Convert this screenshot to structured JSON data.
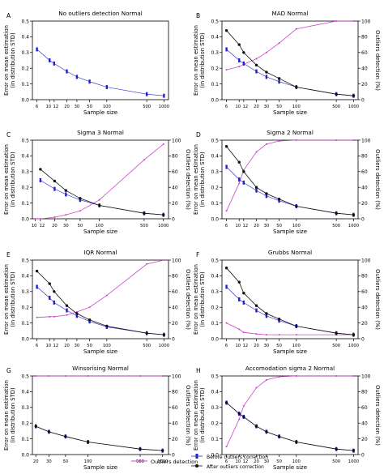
{
  "figure_legend": {
    "outliers_detection": "Outliers detection",
    "before_correction": "Before outliers correction",
    "after_correction": "After outliers correction"
  },
  "colors": {
    "detection": "#cc44cc",
    "before": "#2222cc",
    "after": "#111111"
  },
  "chart_data": [
    {
      "panel": "A",
      "type": "line",
      "title": "No outliers detection Normal",
      "xlabel": "Sample size",
      "ylabel": "Error on  mean estimation\n(in distribution STD)",
      "y2label": "",
      "x_scale": "log",
      "xticks": [
        "6",
        "10",
        "12",
        "20",
        "30",
        "50",
        "100",
        "500",
        "1000"
      ],
      "xlim": [
        5,
        1200
      ],
      "ylim": [
        0,
        0.5
      ],
      "yticks": [
        "0.0",
        "0.1",
        "0.2",
        "0.3",
        "0.4",
        "0.5"
      ],
      "series": [
        {
          "role": "before",
          "x": [
            6,
            10,
            12,
            20,
            30,
            50,
            100,
            500,
            1000
          ],
          "y": [
            0.32,
            0.25,
            0.23,
            0.18,
            0.145,
            0.115,
            0.08,
            0.035,
            0.025
          ]
        }
      ]
    },
    {
      "panel": "B",
      "type": "line",
      "title": "MAD Normal",
      "xlabel": "Sample size",
      "ylabel": "Error on  mean estimation\n(in distribution STD)",
      "y2label": "Outliers detection (%)",
      "x_scale": "log",
      "xticks": [
        "6",
        "10",
        "12",
        "20",
        "30",
        "50",
        "100",
        "500",
        "1000"
      ],
      "xlim": [
        5,
        1200
      ],
      "ylim": [
        0,
        0.5
      ],
      "yticks": [
        "0.0",
        "0.1",
        "0.2",
        "0.3",
        "0.4",
        "0.5"
      ],
      "y2lim": [
        0,
        100
      ],
      "y2ticks": [
        "0",
        "20",
        "40",
        "60",
        "80",
        "100"
      ],
      "series": [
        {
          "role": "before",
          "x": [
            6,
            10,
            12,
            20,
            30,
            50,
            100,
            500,
            1000
          ],
          "y": [
            0.32,
            0.25,
            0.23,
            0.18,
            0.145,
            0.115,
            0.08,
            0.035,
            0.025
          ]
        },
        {
          "role": "after",
          "x": [
            6,
            10,
            12,
            20,
            30,
            50,
            100,
            500,
            1000
          ],
          "y": [
            0.44,
            0.35,
            0.3,
            0.22,
            0.175,
            0.135,
            0.08,
            0.035,
            0.025
          ]
        },
        {
          "role": "detection",
          "axis": "right",
          "x": [
            6,
            10,
            12,
            20,
            30,
            50,
            100,
            500,
            1000
          ],
          "y": [
            38,
            42,
            45,
            52,
            60,
            72,
            90,
            100,
            100
          ]
        }
      ]
    },
    {
      "panel": "C",
      "type": "line",
      "title": "Sigma 3 Normal",
      "xlabel": "Sample size",
      "ylabel": "Error on  mean estimation\n(in distribution STD)",
      "y2label": "Outliers detection (%)",
      "x_scale": "log",
      "xticks": [
        "10",
        "12",
        "20",
        "30",
        "50",
        "100",
        "500",
        "1000"
      ],
      "xlim": [
        9,
        1200
      ],
      "ylim": [
        0,
        0.5
      ],
      "yticks": [
        "0.0",
        "0.1",
        "0.2",
        "0.3",
        "0.4",
        "0.5"
      ],
      "y2lim": [
        0,
        100
      ],
      "y2ticks": [
        "0",
        "20",
        "40",
        "60",
        "80",
        "100"
      ],
      "series": [
        {
          "role": "before",
          "x": [
            12,
            20,
            30,
            50,
            100,
            500,
            1000
          ],
          "y": [
            0.245,
            0.19,
            0.155,
            0.12,
            0.085,
            0.035,
            0.025
          ]
        },
        {
          "role": "after",
          "x": [
            12,
            20,
            30,
            50,
            100,
            500,
            1000
          ],
          "y": [
            0.315,
            0.24,
            0.18,
            0.13,
            0.085,
            0.035,
            0.025
          ]
        },
        {
          "role": "detection",
          "axis": "right",
          "x": [
            10,
            12,
            20,
            30,
            50,
            100,
            500,
            1000
          ],
          "y": [
            0,
            0,
            2,
            5,
            10,
            24,
            75,
            95
          ]
        }
      ]
    },
    {
      "panel": "D",
      "type": "line",
      "title": "Sigma 2 Normal",
      "xlabel": "Sample size",
      "ylabel": "Error on  mean estimation\n(in distribution STD)",
      "y2label": "Outliers detection (%)",
      "x_scale": "log",
      "xticks": [
        "6",
        "10",
        "12",
        "20",
        "30",
        "50",
        "100",
        "500",
        "1000"
      ],
      "xlim": [
        5,
        1200
      ],
      "ylim": [
        0,
        0.5
      ],
      "yticks": [
        "0.0",
        "0.1",
        "0.2",
        "0.3",
        "0.4",
        "0.5"
      ],
      "y2lim": [
        0,
        100
      ],
      "y2ticks": [
        "0",
        "20",
        "40",
        "60",
        "80",
        "100"
      ],
      "series": [
        {
          "role": "before",
          "x": [
            6,
            10,
            12,
            20,
            30,
            50,
            100,
            500,
            1000
          ],
          "y": [
            0.33,
            0.25,
            0.23,
            0.18,
            0.145,
            0.115,
            0.08,
            0.035,
            0.025
          ]
        },
        {
          "role": "after",
          "x": [
            6,
            10,
            12,
            20,
            30,
            50,
            100,
            500,
            1000
          ],
          "y": [
            0.46,
            0.36,
            0.3,
            0.2,
            0.16,
            0.125,
            0.08,
            0.035,
            0.025
          ]
        },
        {
          "role": "detection",
          "axis": "right",
          "x": [
            6,
            10,
            12,
            20,
            30,
            50,
            100,
            500,
            1000
          ],
          "y": [
            10,
            45,
            62,
            85,
            95,
            99,
            100,
            100,
            100
          ]
        }
      ]
    },
    {
      "panel": "E",
      "type": "line",
      "title": "IQR Normal",
      "xlabel": "Sample size",
      "ylabel": "Error on  mean estimation\n(in distribution STD)",
      "y2label": "Outliers detection (%)",
      "x_scale": "log",
      "xticks": [
        "6",
        "10",
        "12",
        "20",
        "30",
        "50",
        "100",
        "500",
        "1000"
      ],
      "xlim": [
        5,
        1200
      ],
      "ylim": [
        0,
        0.5
      ],
      "yticks": [
        "0.0",
        "0.1",
        "0.2",
        "0.3",
        "0.4",
        "0.5"
      ],
      "y2lim": [
        0,
        100
      ],
      "y2ticks": [
        "0",
        "20",
        "40",
        "60",
        "80",
        "100"
      ],
      "series": [
        {
          "role": "before",
          "x": [
            6,
            10,
            12,
            20,
            30,
            50,
            100,
            500,
            1000
          ],
          "y": [
            0.33,
            0.26,
            0.23,
            0.18,
            0.145,
            0.11,
            0.075,
            0.035,
            0.025
          ]
        },
        {
          "role": "after",
          "x": [
            6,
            10,
            12,
            20,
            30,
            50,
            100,
            500,
            1000
          ],
          "y": [
            0.43,
            0.35,
            0.3,
            0.21,
            0.16,
            0.12,
            0.08,
            0.035,
            0.025
          ]
        },
        {
          "role": "detection",
          "axis": "right",
          "x": [
            6,
            10,
            12,
            20,
            30,
            50,
            100,
            500,
            1000
          ],
          "y": [
            27,
            28,
            28,
            30,
            34,
            40,
            55,
            95,
            100
          ]
        }
      ]
    },
    {
      "panel": "F",
      "type": "line",
      "title": "Grubbs Normal",
      "xlabel": "Sample size",
      "ylabel": "Error on  mean estimation\n(in distribution STD)",
      "y2label": "Outliers detection (%)",
      "x_scale": "log",
      "xticks": [
        "6",
        "10",
        "12",
        "20",
        "30",
        "50",
        "100",
        "500",
        "1000"
      ],
      "xlim": [
        5,
        1200
      ],
      "ylim": [
        0,
        0.5
      ],
      "yticks": [
        "0.0",
        "0.1",
        "0.2",
        "0.3",
        "0.4",
        "0.5"
      ],
      "y2lim": [
        0,
        100
      ],
      "y2ticks": [
        "0",
        "20",
        "40",
        "60",
        "80",
        "100"
      ],
      "series": [
        {
          "role": "before",
          "x": [
            6,
            10,
            12,
            20,
            30,
            50,
            100,
            500,
            1000
          ],
          "y": [
            0.33,
            0.25,
            0.23,
            0.18,
            0.145,
            0.115,
            0.08,
            0.035,
            0.025
          ]
        },
        {
          "role": "after",
          "x": [
            6,
            10,
            12,
            20,
            30,
            50,
            100,
            500,
            1000
          ],
          "y": [
            0.45,
            0.36,
            0.29,
            0.21,
            0.16,
            0.125,
            0.08,
            0.035,
            0.025
          ]
        },
        {
          "role": "detection",
          "axis": "right",
          "x": [
            6,
            10,
            12,
            20,
            30,
            50,
            100,
            500,
            1000
          ],
          "y": [
            20,
            12,
            8,
            6,
            5,
            5,
            5,
            5,
            5
          ]
        }
      ]
    },
    {
      "panel": "G",
      "type": "line",
      "title": "Winsorising Normal",
      "xlabel": "Sample size",
      "ylabel": "Error on  mean estimation\n(in distribution STD)",
      "y2label": "Outliers detection (%)",
      "x_scale": "log",
      "xticks": [
        "20",
        "30",
        "50",
        "100",
        "500",
        "1000"
      ],
      "xlim": [
        18,
        1200
      ],
      "ylim": [
        0,
        0.5
      ],
      "yticks": [
        "0.0",
        "0.1",
        "0.2",
        "0.3",
        "0.4",
        "0.5"
      ],
      "y2lim": [
        0,
        100
      ],
      "y2ticks": [
        "0",
        "20",
        "40",
        "60",
        "80",
        "100"
      ],
      "series": [
        {
          "role": "before",
          "x": [
            20,
            30,
            50,
            100,
            500,
            1000
          ],
          "y": [
            0.18,
            0.145,
            0.115,
            0.08,
            0.035,
            0.025
          ]
        },
        {
          "role": "after",
          "x": [
            20,
            30,
            50,
            100,
            500,
            1000
          ],
          "y": [
            0.18,
            0.145,
            0.115,
            0.08,
            0.035,
            0.025
          ]
        },
        {
          "role": "detection",
          "axis": "right",
          "x": [
            20,
            30,
            50,
            100,
            500,
            1000
          ],
          "y": [
            100,
            100,
            100,
            100,
            100,
            100
          ]
        }
      ]
    },
    {
      "panel": "H",
      "type": "line",
      "title": "Accomodation sigma 2 Normal",
      "xlabel": "Sample size",
      "ylabel": "Error on  mean estimation\n(in distribution STD)",
      "y2label": "Outliers detection (%)",
      "x_scale": "log",
      "xticks": [
        "6",
        "10",
        "12",
        "20",
        "30",
        "50",
        "100",
        "500",
        "1000"
      ],
      "xlim": [
        5,
        1200
      ],
      "ylim": [
        0,
        0.5
      ],
      "yticks": [
        "0.0",
        "0.1",
        "0.2",
        "0.3",
        "0.4",
        "0.5"
      ],
      "y2lim": [
        0,
        100
      ],
      "y2ticks": [
        "0",
        "20",
        "40",
        "60",
        "80",
        "100"
      ],
      "series": [
        {
          "role": "before",
          "x": [
            6,
            10,
            12,
            20,
            30,
            50,
            100,
            500,
            1000
          ],
          "y": [
            0.33,
            0.26,
            0.24,
            0.18,
            0.145,
            0.115,
            0.08,
            0.035,
            0.025
          ]
        },
        {
          "role": "after",
          "x": [
            6,
            10,
            12,
            20,
            30,
            50,
            100,
            500,
            1000
          ],
          "y": [
            0.33,
            0.26,
            0.24,
            0.18,
            0.145,
            0.115,
            0.08,
            0.035,
            0.025
          ]
        },
        {
          "role": "detection",
          "axis": "right",
          "x": [
            6,
            10,
            12,
            20,
            30,
            50,
            100,
            500,
            1000
          ],
          "y": [
            10,
            45,
            62,
            85,
            95,
            99,
            100,
            100,
            100
          ]
        }
      ]
    }
  ]
}
